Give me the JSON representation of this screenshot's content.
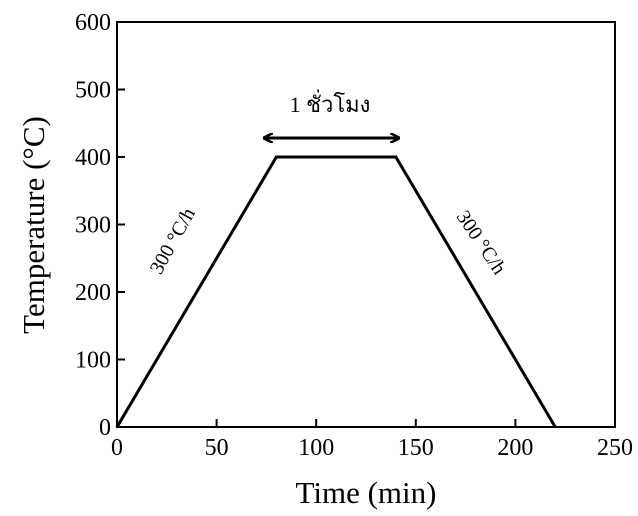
{
  "chart_data": {
    "type": "line",
    "xlabel": "Time (min)",
    "ylabel": "Temperature (°C)",
    "xlim": [
      0,
      250
    ],
    "xticks": [
      0,
      50,
      100,
      150,
      200,
      250
    ],
    "ylim": [
      0,
      600
    ],
    "yticks": [
      0,
      100,
      200,
      300,
      400,
      500,
      600
    ],
    "series": [
      {
        "color": "#000000",
        "x": [
          0,
          80,
          140,
          220
        ],
        "values": [
          0,
          400,
          400,
          0
        ]
      }
    ],
    "annotations": [
      "1 ชั่วโมง",
      "300 °C/h",
      "300 °C/h"
    ]
  }
}
